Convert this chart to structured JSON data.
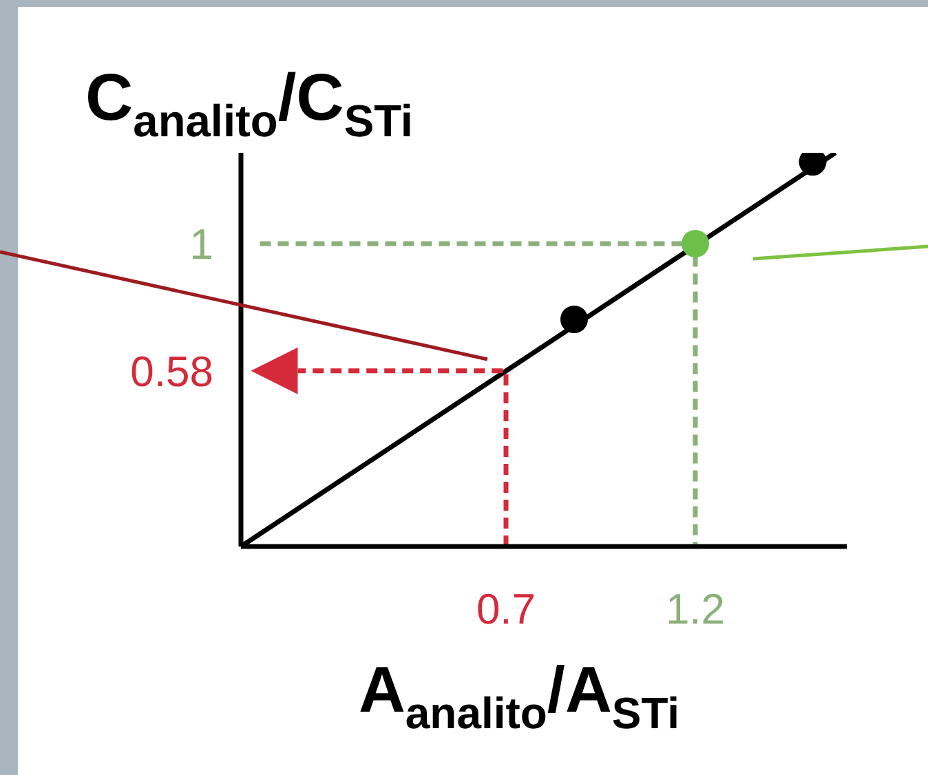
{
  "chart_data": {
    "type": "line",
    "xlabel": "A$_{analito}$/A$_{STi}$",
    "ylabel": "C$_{analito}$/C$_{STi}$",
    "xlim": [
      0,
      1.6
    ],
    "ylim": [
      0,
      1.3
    ],
    "xticks": [
      0.7,
      1.2
    ],
    "yticks": [
      0.58,
      1
    ],
    "series": [
      {
        "x": [
          0,
          1.57
        ],
        "values": [
          0,
          1.3
        ],
        "color": "#000000"
      },
      {
        "type": "scatter",
        "x": [
          0.88,
          1.51
        ],
        "values": [
          0.75,
          1.27
        ],
        "color": "#000000",
        "marker": "circle"
      },
      {
        "type": "scatter",
        "x": [
          1.2
        ],
        "values": [
          1
        ],
        "color": "#6cc04a",
        "marker": "circle"
      },
      {
        "x": [
          0.7,
          0.7,
          0.15
        ],
        "values": [
          0,
          0.58,
          0.58
        ],
        "color": "#d42a3a",
        "line_style": "dashed"
      },
      {
        "x": [
          0.05,
          1.2,
          1.2
        ],
        "values": [
          1,
          1,
          0
        ],
        "color": "#8cb07a",
        "line_style": "dashed"
      }
    ]
  }
}
